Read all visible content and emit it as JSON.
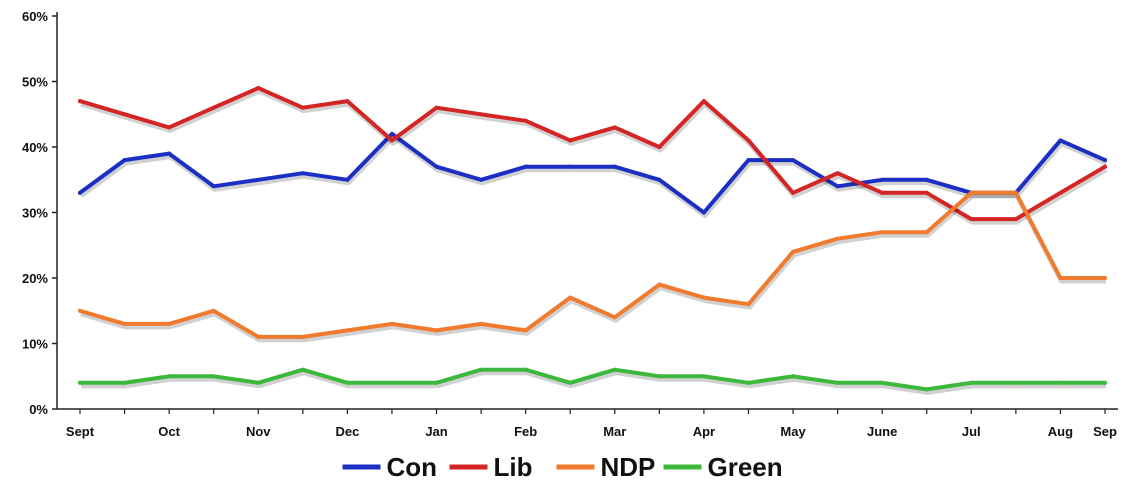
{
  "chart_data": {
    "type": "line",
    "x": [
      "Sept",
      "",
      "Oct",
      "",
      "Nov",
      "",
      "Dec",
      "",
      "Jan",
      "",
      "Feb",
      "",
      "Mar",
      "",
      "Apr",
      "",
      "May",
      "",
      "June",
      "",
      "Jul",
      "",
      "Aug",
      "Sep"
    ],
    "x_ticks": [
      {
        "index": 0,
        "label": "Sept"
      },
      {
        "index": 2,
        "label": "Oct"
      },
      {
        "index": 4,
        "label": "Nov"
      },
      {
        "index": 6,
        "label": "Dec"
      },
      {
        "index": 8,
        "label": "Jan"
      },
      {
        "index": 10,
        "label": "Feb"
      },
      {
        "index": 12,
        "label": "Mar"
      },
      {
        "index": 14,
        "label": "Apr"
      },
      {
        "index": 16,
        "label": "May"
      },
      {
        "index": 18,
        "label": "June"
      },
      {
        "index": 20,
        "label": "Jul"
      },
      {
        "index": 22,
        "label": "Aug"
      },
      {
        "index": 23,
        "label": "Sep"
      }
    ],
    "y_ticks": [
      "0%",
      "10%",
      "20%",
      "30%",
      "40%",
      "50%",
      "60%"
    ],
    "ylim": [
      0,
      60
    ],
    "title": "",
    "xlabel": "",
    "ylabel": "",
    "grid": false,
    "legend_position": "bottom",
    "series": [
      {
        "name": "Con",
        "color": "#1c2fc4",
        "values": [
          33,
          38,
          39,
          34,
          35,
          36,
          35,
          42,
          37,
          35,
          37,
          37,
          37,
          35,
          30,
          38,
          38,
          34,
          35,
          35,
          33,
          33,
          41,
          38
        ]
      },
      {
        "name": "Lib",
        "color": "#d42424",
        "values": [
          47,
          45,
          43,
          46,
          49,
          46,
          47,
          41,
          46,
          45,
          44,
          41,
          43,
          40,
          47,
          41,
          33,
          36,
          33,
          33,
          29,
          29,
          33,
          37
        ]
      },
      {
        "name": "NDP",
        "color": "#f07b2e",
        "values": [
          15,
          13,
          13,
          15,
          11,
          11,
          12,
          13,
          12,
          13,
          12,
          17,
          14,
          19,
          17,
          16,
          24,
          26,
          27,
          27,
          33,
          33,
          20,
          20
        ]
      },
      {
        "name": "Green",
        "color": "#3cb83c",
        "values": [
          4,
          4,
          5,
          5,
          4,
          6,
          4,
          4,
          4,
          6,
          6,
          4,
          6,
          5,
          5,
          4,
          5,
          4,
          4,
          3,
          4,
          4,
          4,
          4
        ]
      }
    ]
  }
}
